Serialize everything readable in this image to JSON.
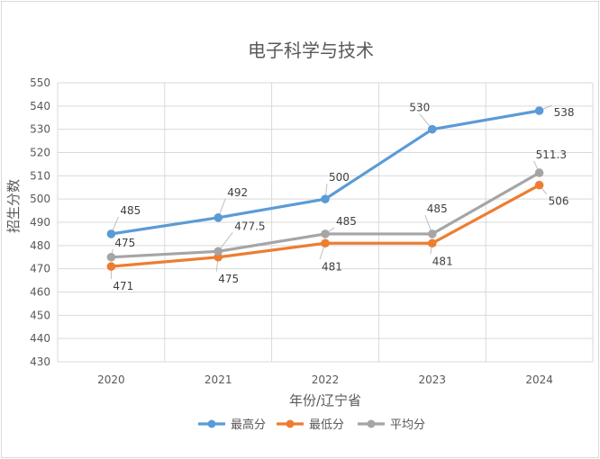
{
  "chart_data": {
    "type": "line",
    "title": "电子科学与技术",
    "xlabel": "年份/辽宁省",
    "ylabel": "招生分数",
    "categories": [
      "2020",
      "2021",
      "2022",
      "2023",
      "2024"
    ],
    "ylim": [
      430,
      550
    ],
    "ytick_step": 10,
    "grid": true,
    "legend": "bottom",
    "series": [
      {
        "name": "最高分",
        "color": "#5b9bd5",
        "values": [
          485,
          492,
          500,
          530,
          538
        ],
        "labels": [
          "485",
          "492",
          "500",
          "530",
          "538"
        ]
      },
      {
        "name": "最低分",
        "color": "#ed7d31",
        "values": [
          471,
          475,
          481,
          481,
          506
        ],
        "labels": [
          "471",
          "475",
          "481",
          "481",
          "506"
        ]
      },
      {
        "name": "平均分",
        "color": "#a5a5a5",
        "values": [
          475,
          477.5,
          485,
          485,
          511.3
        ],
        "labels": [
          "475",
          "477.5",
          "485",
          "485",
          "511.3"
        ]
      }
    ]
  }
}
